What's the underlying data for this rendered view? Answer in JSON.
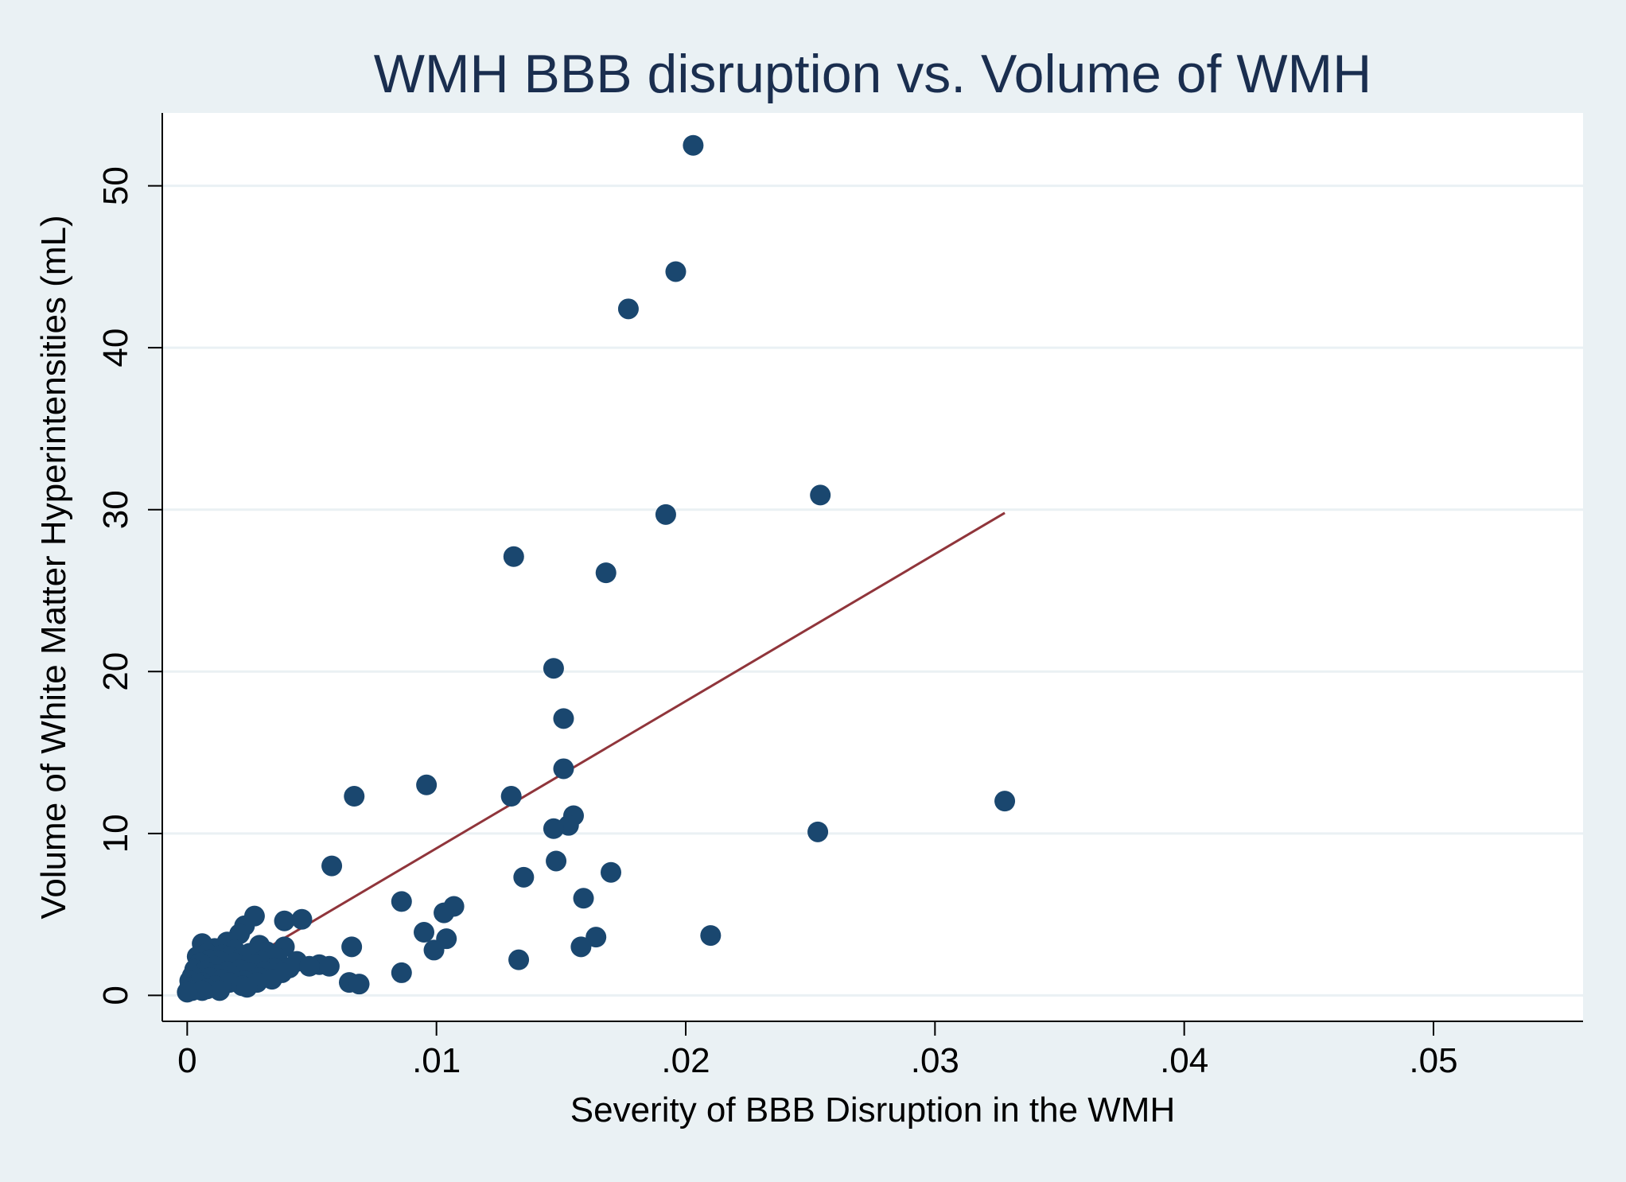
{
  "chart_data": {
    "type": "scatter",
    "title": "WMH BBB disruption vs. Volume of WMH",
    "xlabel": "Severity of BBB Disruption in the WMH",
    "ylabel": "Volume of White Matter Hyperintensities (mL)",
    "xlim": [
      -0.001,
      0.056
    ],
    "ylim": [
      -1.6,
      54.5
    ],
    "x_ticks": [
      0,
      0.01,
      0.02,
      0.03,
      0.04,
      0.05
    ],
    "x_tick_labels": [
      "0",
      ".01",
      ".02",
      ".03",
      ".04",
      ".05"
    ],
    "y_ticks": [
      0,
      10,
      20,
      30,
      40,
      50
    ],
    "y_tick_labels": [
      "0",
      "10",
      "20",
      "30",
      "40",
      "50"
    ],
    "grid": "horizontal",
    "legend": "none",
    "colors": {
      "background": "#eaf1f4",
      "plot_background": "#ffffff",
      "gridline": "#eaf1f4",
      "marker": "#1a476f",
      "fit_line": "#90353b",
      "title": "#1a2e4f"
    },
    "series": [
      {
        "name": "observations",
        "kind": "scatter",
        "points": [
          [
            0.0203,
            52.5
          ],
          [
            0.0196,
            44.7
          ],
          [
            0.0177,
            42.4
          ],
          [
            0.0254,
            30.9
          ],
          [
            0.0192,
            29.7
          ],
          [
            0.0131,
            27.1
          ],
          [
            0.0168,
            26.1
          ],
          [
            0.0147,
            20.2
          ],
          [
            0.0151,
            17.1
          ],
          [
            0.0151,
            14.0
          ],
          [
            0.0096,
            13.0
          ],
          [
            0.0067,
            12.3
          ],
          [
            0.013,
            12.3
          ],
          [
            0.0328,
            12.0
          ],
          [
            0.0155,
            11.1
          ],
          [
            0.0153,
            10.5
          ],
          [
            0.0147,
            10.3
          ],
          [
            0.0253,
            10.1
          ],
          [
            0.0148,
            8.3
          ],
          [
            0.0058,
            8.0
          ],
          [
            0.017,
            7.6
          ],
          [
            0.0135,
            7.3
          ],
          [
            0.0159,
            6.0
          ],
          [
            0.0086,
            5.8
          ],
          [
            0.0107,
            5.5
          ],
          [
            0.0103,
            5.1
          ],
          [
            0.0027,
            4.9
          ],
          [
            0.0046,
            4.7
          ],
          [
            0.0039,
            4.6
          ],
          [
            0.0023,
            4.3
          ],
          [
            0.0095,
            3.9
          ],
          [
            0.0021,
            3.8
          ],
          [
            0.021,
            3.7
          ],
          [
            0.0164,
            3.6
          ],
          [
            0.0104,
            3.5
          ],
          [
            0.0016,
            3.3
          ],
          [
            0.0006,
            3.2
          ],
          [
            0.0029,
            3.1
          ],
          [
            0.0066,
            3.0
          ],
          [
            0.0158,
            3.0
          ],
          [
            0.0039,
            3.0
          ],
          [
            0.0011,
            2.9
          ],
          [
            0.0019,
            2.8
          ],
          [
            0.0099,
            2.8
          ],
          [
            0.0032,
            2.7
          ],
          [
            0.0008,
            2.6
          ],
          [
            0.0025,
            2.6
          ],
          [
            0.0014,
            2.5
          ],
          [
            0.0004,
            2.4
          ],
          [
            0.0017,
            2.4
          ],
          [
            0.0036,
            2.3
          ],
          [
            0.0022,
            2.3
          ],
          [
            0.0009,
            2.2
          ],
          [
            0.0133,
            2.2
          ],
          [
            0.003,
            2.1
          ],
          [
            0.0013,
            2.1
          ],
          [
            0.0044,
            2.1
          ],
          [
            0.0019,
            2.0
          ],
          [
            0.0005,
            2.0
          ],
          [
            0.0027,
            1.9
          ],
          [
            0.0053,
            1.9
          ],
          [
            0.0057,
            1.8
          ],
          [
            0.0049,
            1.8
          ],
          [
            0.0011,
            1.8
          ],
          [
            0.0041,
            1.7
          ],
          [
            0.0035,
            1.7
          ],
          [
            0.0003,
            1.6
          ],
          [
            0.0021,
            1.6
          ],
          [
            0.0016,
            1.5
          ],
          [
            0.0007,
            1.5
          ],
          [
            0.0031,
            1.5
          ],
          [
            0.0025,
            1.4
          ],
          [
            0.0038,
            1.4
          ],
          [
            0.0012,
            1.3
          ],
          [
            0.0086,
            1.4
          ],
          [
            0.0002,
            1.2
          ],
          [
            0.0018,
            1.2
          ],
          [
            0.0029,
            1.1
          ],
          [
            0.0009,
            1.1
          ],
          [
            0.0034,
            1.0
          ],
          [
            0.0014,
            1.0
          ],
          [
            0.0001,
            0.9
          ],
          [
            0.0023,
            0.9
          ],
          [
            0.0006,
            0.8
          ],
          [
            0.0065,
            0.8
          ],
          [
            0.0017,
            0.8
          ],
          [
            0.0028,
            0.8
          ],
          [
            0.0069,
            0.7
          ],
          [
            0.0004,
            0.7
          ],
          [
            0.0011,
            0.6
          ],
          [
            0.0022,
            0.6
          ],
          [
            0.0001,
            0.5
          ],
          [
            0.0008,
            0.4
          ],
          [
            0.0024,
            0.5
          ],
          [
            0.0002,
            0.3
          ],
          [
            0.0013,
            0.3
          ],
          [
            0.0006,
            0.3
          ],
          [
            0.0,
            0.2
          ]
        ]
      },
      {
        "name": "linear fit",
        "kind": "line",
        "points": [
          [
            0.0,
            0.0
          ],
          [
            0.0328,
            29.8
          ]
        ]
      }
    ]
  }
}
